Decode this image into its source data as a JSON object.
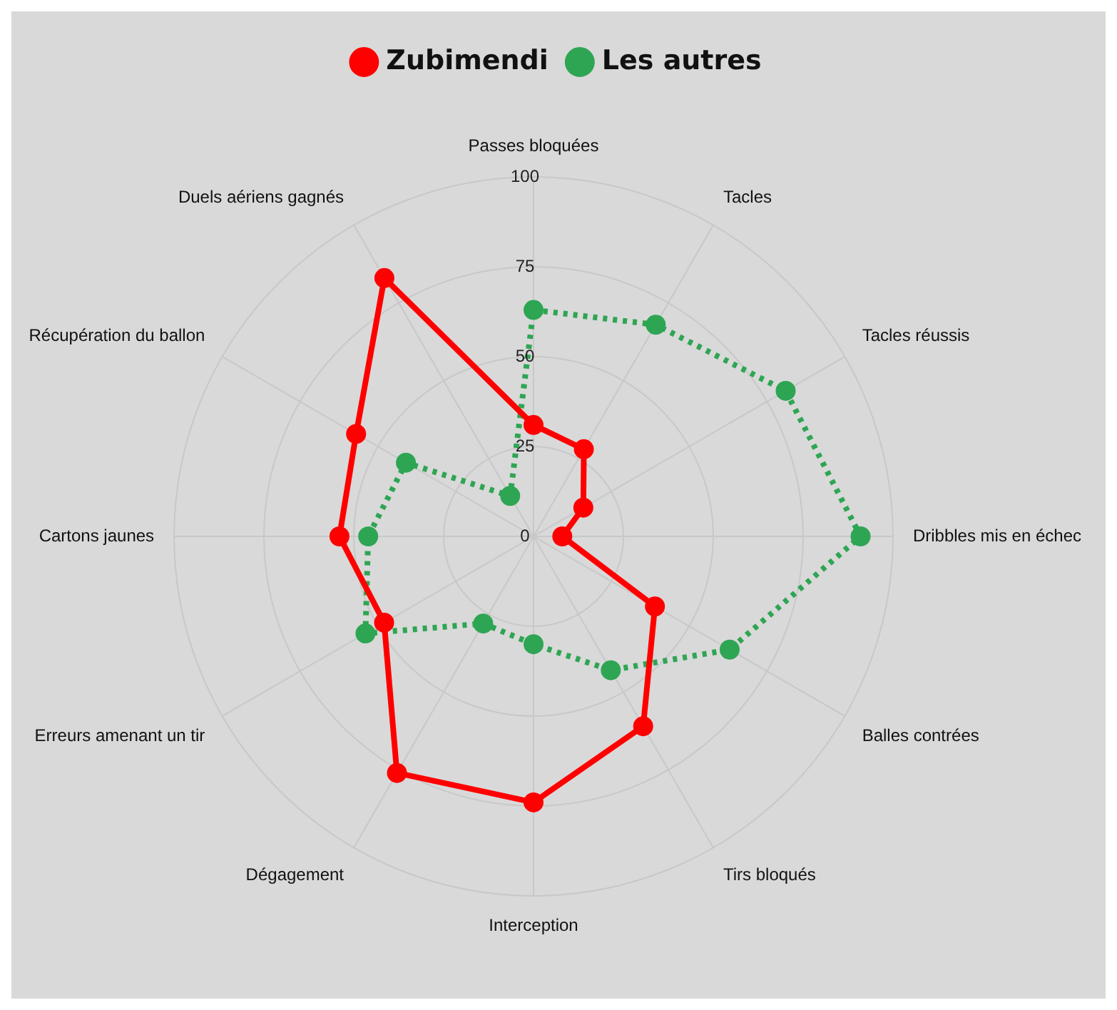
{
  "chart_data": {
    "type": "radar",
    "categories": [
      "Passes bloquées",
      "Tacles",
      "Tacles réussis",
      "Dribbles mis en échec",
      "Balles contrées",
      "Tirs bloqués",
      "Interception",
      "Dégagement",
      "Erreurs amenant un tir",
      "Cartons jaunes",
      "Récupération du ballon",
      "Duels aériens gagnés"
    ],
    "series": [
      {
        "name": "Zubimendi",
        "color": "#ff0000",
        "line_style": "solid",
        "values": [
          31,
          28,
          16,
          8,
          39,
          61,
          74,
          76,
          48,
          54,
          57,
          83
        ]
      },
      {
        "name": "Les autres",
        "color": "#2ea553",
        "line_style": "dotted",
        "values": [
          63,
          68,
          81,
          91,
          63,
          43,
          30,
          28,
          54,
          46,
          41,
          13
        ]
      }
    ],
    "ylim": [
      0,
      100
    ],
    "yticks": [
      0,
      25,
      50,
      75,
      100
    ],
    "grid": true,
    "legend": "top",
    "marker": "circle"
  }
}
